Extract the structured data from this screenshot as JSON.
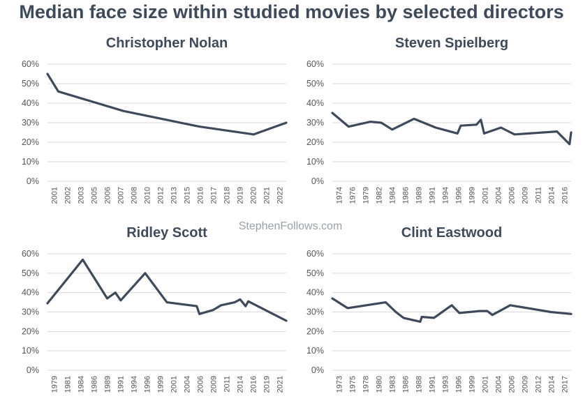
{
  "title": "Median face size within studied movies by selected directors",
  "watermark": "StephenFollows.com",
  "colors": {
    "line": "#3d4a5c",
    "grid": "#d9d9d9",
    "tick": "#555555",
    "title": "#3d4a5c"
  },
  "chart_data": [
    {
      "type": "line",
      "title": "Christopher Nolan",
      "xlabel": "",
      "ylabel": "",
      "ylim": [
        0,
        60
      ],
      "yticks": [
        "0%",
        "10%",
        "20%",
        "30%",
        "40%",
        "50%",
        "60%"
      ],
      "xticks": [
        "2001",
        "2002",
        "2003",
        "2005",
        "2006",
        "2007",
        "2008",
        "2010",
        "2012",
        "2013",
        "2015",
        "2016",
        "2017",
        "2018",
        "2019",
        "2020",
        "2021",
        "2022"
      ],
      "x": [
        2001,
        2002,
        2008,
        2015,
        2020,
        2023
      ],
      "values": [
        55,
        46,
        36,
        28,
        24,
        30
      ]
    },
    {
      "type": "line",
      "title": "Steven Spielberg",
      "xlabel": "",
      "ylabel": "",
      "ylim": [
        0,
        60
      ],
      "yticks": [
        "0%",
        "10%",
        "20%",
        "30%",
        "40%",
        "50%",
        "60%"
      ],
      "xticks": [
        "1974",
        "1976",
        "1979",
        "1982",
        "1984",
        "1986",
        "1989",
        "1991",
        "1994",
        "1996",
        "1999",
        "2001",
        "2004",
        "2006",
        "2009",
        "2011",
        "2014",
        "2016"
      ],
      "x": [
        1974,
        1977,
        1981,
        1983,
        1985,
        1989,
        1993,
        1997,
        1997.6,
        2000.5,
        2001.3,
        2001.9,
        2005,
        2007.5,
        2015.3,
        2017.6,
        2017.9
      ],
      "values": [
        35,
        28,
        30.5,
        30,
        26.5,
        32,
        27.5,
        24.5,
        28.5,
        29,
        31.5,
        24.5,
        27.5,
        24,
        25.5,
        19,
        25
      ]
    },
    {
      "type": "line",
      "title": "Ridley Scott",
      "xlabel": "",
      "ylabel": "",
      "ylim": [
        0,
        60
      ],
      "yticks": [
        "0%",
        "10%",
        "20%",
        "30%",
        "40%",
        "50%",
        "60%"
      ],
      "xticks": [
        "1979",
        "1981",
        "1984",
        "1986",
        "1989",
        "1991",
        "1994",
        "1996",
        "1999",
        "2001",
        "2004",
        "2006",
        "2009",
        "2011",
        "2014",
        "2016",
        "2019",
        "2021"
      ],
      "x": [
        1979,
        1985.5,
        1990,
        1991.5,
        1992.5,
        1997,
        2001,
        2006.5,
        2007,
        2009.5,
        2011,
        2013.5,
        2014.5,
        2015.5,
        2016,
        2023
      ],
      "values": [
        34.5,
        57,
        37,
        40,
        36,
        50,
        35,
        33,
        29,
        31,
        33.5,
        35,
        36.5,
        33,
        35.5,
        25.5
      ]
    },
    {
      "type": "line",
      "title": "Clint Eastwood",
      "xlabel": "",
      "ylabel": "",
      "ylim": [
        0,
        60
      ],
      "yticks": [
        "0%",
        "10%",
        "20%",
        "30%",
        "40%",
        "50%",
        "60%"
      ],
      "xticks": [
        "1973",
        "1975",
        "1978",
        "1980",
        "1983",
        "1986",
        "1988",
        "1991",
        "1993",
        "1996",
        "1999",
        "2001",
        "2004",
        "2006",
        "2009",
        "2012",
        "2014",
        "2017"
      ],
      "x": [
        1973,
        1976,
        1983.5,
        1985.5,
        1987,
        1990.3,
        1990.6,
        1993,
        1996.5,
        1998,
        2002,
        2003.5,
        2004.5,
        2008,
        2016,
        2020
      ],
      "values": [
        37,
        32,
        35,
        30,
        27,
        25,
        27.5,
        27,
        33.5,
        29.5,
        30.5,
        30.5,
        28.5,
        33.5,
        30,
        29
      ]
    }
  ]
}
